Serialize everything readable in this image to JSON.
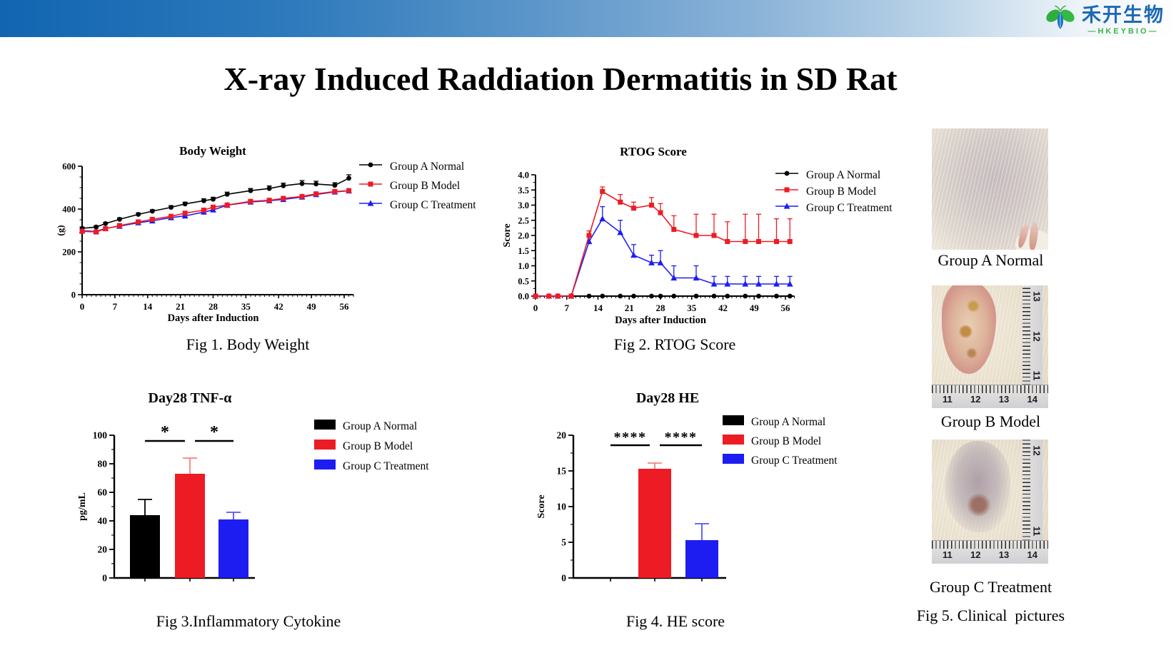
{
  "header": {
    "brand_cn": "禾开生物",
    "brand_en": "—HKEYBIO—",
    "brand_cn_color": "#1d69b5",
    "brand_en_color": "#3cb349",
    "bar_gradient_left": "#1165b1",
    "bar_gradient_right": "#ffffff"
  },
  "title": "X-ray Induced Raddiation Dermatitis in SD Rat",
  "groups": [
    {
      "label": "Group A Normal",
      "color": "#000000",
      "marker": "circle"
    },
    {
      "label": "Group B Model",
      "color": "#ed1c24",
      "marker": "square"
    },
    {
      "label": "Group C Treatment",
      "color": "#1d1df2",
      "marker": "triangle"
    }
  ],
  "captions": {
    "fig1": "Fig 1. Body Weight",
    "fig2": "Fig 2. RTOG Score",
    "fig3": "Fig 3.Inflammatory Cytokine",
    "fig4": "Fig 4. HE score",
    "fig5": "Fig 5. Clinical  pictures"
  },
  "photos": [
    {
      "caption": "Group A Normal",
      "type": "normal-skin"
    },
    {
      "caption": "Group B Model",
      "type": "wound",
      "ruler_h": [
        "11",
        "12",
        "13",
        "14"
      ],
      "ruler_v": [
        "13",
        "12",
        "11"
      ]
    },
    {
      "caption": "Group C Treatment",
      "type": "healing",
      "ruler_h": [
        "11",
        "12",
        "13",
        "14"
      ],
      "ruler_v": [
        "12",
        "11"
      ]
    }
  ],
  "chart_data": [
    {
      "id": "body-weight",
      "type": "line",
      "title": "Body Weight",
      "xlabel": "Days after Induction",
      "ylabel": "(g)",
      "ylim": [
        0,
        600
      ],
      "yticks": [
        0,
        200,
        400,
        600
      ],
      "y_minor_step": 50,
      "xticks": [
        0,
        7,
        14,
        21,
        28,
        35,
        42,
        49,
        56
      ],
      "x_minor_step": 1,
      "x_axis_end": 58,
      "error_direction": "up",
      "legend_position": "right",
      "x": [
        0,
        3,
        5,
        8,
        12,
        15,
        19,
        22,
        26,
        28,
        31,
        36,
        40,
        43,
        47,
        50,
        54,
        57
      ],
      "series": [
        {
          "name": "Group A Normal",
          "color": "#000000",
          "marker": "circle",
          "values": [
            310,
            316,
            332,
            352,
            375,
            390,
            408,
            424,
            439,
            446,
            469,
            486,
            496,
            509,
            519,
            517,
            511,
            544
          ],
          "errors": [
            6,
            6,
            6,
            7,
            7,
            7,
            8,
            8,
            9,
            9,
            10,
            10,
            12,
            12,
            14,
            13,
            12,
            16
          ]
        },
        {
          "name": "Group B Model",
          "color": "#ed1c24",
          "marker": "square",
          "values": [
            296,
            293,
            308,
            323,
            340,
            352,
            366,
            381,
            395,
            409,
            419,
            436,
            441,
            450,
            459,
            471,
            482,
            486
          ],
          "errors": [
            5,
            5,
            5,
            5,
            6,
            6,
            6,
            6,
            7,
            7,
            7,
            7,
            7,
            7,
            7,
            7,
            8,
            8
          ]
        },
        {
          "name": "Group C Treatment",
          "color": "#1d1df2",
          "marker": "triangle",
          "values": [
            299,
            295,
            310,
            320,
            336,
            345,
            360,
            368,
            386,
            396,
            418,
            433,
            439,
            445,
            456,
            468,
            480,
            485
          ],
          "errors": [
            5,
            5,
            5,
            5,
            6,
            6,
            6,
            6,
            7,
            7,
            7,
            7,
            7,
            7,
            7,
            7,
            8,
            8
          ]
        }
      ]
    },
    {
      "id": "rtog",
      "type": "line",
      "title": "RTOG Score",
      "xlabel": "Days after Induction",
      "ylabel": "Score",
      "ylim": [
        0,
        4
      ],
      "yticks": [
        0,
        0.5,
        1,
        1.5,
        2,
        2.5,
        3,
        3.5,
        4
      ],
      "ytick_labels": [
        "0.0",
        "0.5",
        "1.0",
        "1.5",
        "2.0",
        "2.5",
        "3.0",
        "3.5",
        "4.0"
      ],
      "y_minor_step": 0.25,
      "xticks": [
        0,
        7,
        14,
        21,
        28,
        35,
        42,
        49,
        56
      ],
      "x_minor_step": 1,
      "x_axis_end": 58,
      "error_direction": "up",
      "legend_position": "right",
      "x": [
        0,
        3,
        5,
        8,
        12,
        15,
        19,
        22,
        26,
        28,
        31,
        36,
        40,
        43,
        47,
        50,
        54,
        57
      ],
      "series": [
        {
          "name": "Group A Normal",
          "color": "#000000",
          "marker": "circle",
          "values": [
            0,
            0,
            0,
            0,
            0,
            0,
            0,
            0,
            0,
            0,
            0,
            0,
            0,
            0,
            0,
            0,
            0,
            0
          ],
          "errors": [
            0,
            0,
            0,
            0,
            0,
            0,
            0,
            0,
            0,
            0,
            0,
            0,
            0,
            0,
            0,
            0,
            0,
            0
          ]
        },
        {
          "name": "Group B Model",
          "color": "#ed1c24",
          "marker": "square",
          "values": [
            0,
            0,
            0,
            0,
            2,
            3.45,
            3.1,
            2.9,
            3,
            2.75,
            2.2,
            2,
            2,
            1.8,
            1.8,
            1.8,
            1.8,
            1.8
          ],
          "errors": [
            0,
            0,
            0,
            0,
            0.15,
            0.15,
            0.25,
            0.2,
            0.25,
            0.3,
            0.45,
            0.7,
            0.7,
            0.65,
            0.9,
            0.9,
            0.75,
            0.75
          ]
        },
        {
          "name": "Group C Treatment",
          "color": "#1d1df2",
          "marker": "triangle",
          "values": [
            0,
            0,
            0,
            0,
            1.8,
            2.55,
            2.1,
            1.35,
            1.1,
            1.1,
            0.6,
            0.6,
            0.4,
            0.4,
            0.4,
            0.4,
            0.4,
            0.4
          ],
          "errors": [
            0,
            0,
            0,
            0,
            0.25,
            0.4,
            0.4,
            0.35,
            0.25,
            0.4,
            0.4,
            0.4,
            0.25,
            0.25,
            0.25,
            0.25,
            0.25,
            0.25
          ]
        }
      ]
    },
    {
      "id": "tnf",
      "type": "bar",
      "title": "Day28 TNF-α",
      "ylabel": "pg/mL",
      "ylim": [
        0,
        100
      ],
      "yticks": [
        0,
        20,
        40,
        60,
        80,
        100
      ],
      "y_minor_step": 10,
      "categories": [
        "Group A Normal",
        "Group B Model",
        "Group C Treatment"
      ],
      "values": [
        44,
        73,
        41
      ],
      "errors": [
        11,
        11,
        5
      ],
      "colors": [
        "#000000",
        "#ed1c24",
        "#1d1df2"
      ],
      "error_colors": [
        "#000000",
        "#f4837b",
        "#5555f5"
      ],
      "significance": [
        {
          "from": 0,
          "to": 1,
          "label": "*",
          "y": 96
        },
        {
          "from": 1,
          "to": 2,
          "label": "*",
          "y": 96
        }
      ]
    },
    {
      "id": "he",
      "type": "bar",
      "title": "Day28 HE",
      "ylabel": "Score",
      "ylim": [
        0,
        20
      ],
      "yticks": [
        0,
        5,
        10,
        15,
        20
      ],
      "y_minor_step": 2.5,
      "categories": [
        "Group A Normal",
        "Group B Model",
        "Group C Treatment"
      ],
      "values": [
        0,
        15.3,
        5.3
      ],
      "errors": [
        0,
        0.8,
        2.3
      ],
      "colors": [
        "#000000",
        "#ed1c24",
        "#1d1df2"
      ],
      "error_colors": [
        "#000000",
        "#f4837b",
        "#5555f5"
      ],
      "significance": [
        {
          "from": 0,
          "to": 1,
          "label": "****",
          "y": 18.6
        },
        {
          "from": 1,
          "to": 2,
          "label": "****",
          "y": 18.6
        }
      ]
    }
  ]
}
